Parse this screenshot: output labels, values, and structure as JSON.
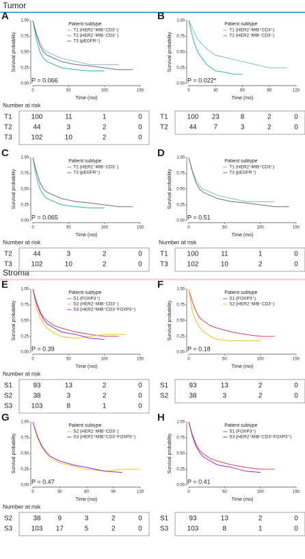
{
  "sections": [
    {
      "title": "Tumor",
      "color": "#1a8fc9"
    },
    {
      "title": "Stroma",
      "color": "#e06666"
    }
  ],
  "chart_data": [
    {
      "type": "line",
      "panel_label": "A",
      "ylabel": "Survival probability",
      "xlabel": "Time (mo)",
      "legend_title": "Patient subtype",
      "annotation": "P = 0.066",
      "annotation_color": "#000000",
      "xlim": [
        0,
        150
      ],
      "xticks": [
        0,
        50,
        100,
        150
      ],
      "ylim": [
        0,
        1
      ],
      "yticks": [
        {
          "value": 0,
          "label": "0.00"
        },
        {
          "value": 0.25,
          "label": "0.25"
        },
        {
          "value": 0.5,
          "label": "0.50"
        },
        {
          "value": 0.75,
          "label": "0.75"
        },
        {
          "value": 1,
          "label": "1.00"
        }
      ],
      "series": [
        {
          "name": "T1 (HER2⁺MIB⁺CD3⁺)",
          "color": "#7fb8e6",
          "x": [
            0,
            5,
            10,
            15,
            20,
            30,
            40,
            60,
            80,
            100,
            120
          ],
          "values": [
            1,
            0.8,
            0.65,
            0.55,
            0.5,
            0.45,
            0.4,
            0.35,
            0.3,
            0.3,
            0.3
          ]
        },
        {
          "name": "T2 (HER2⁻MIB⁻CD3⁻)",
          "color": "#2ab7b0",
          "x": [
            0,
            5,
            10,
            15,
            20,
            30,
            40,
            60,
            80,
            100
          ],
          "values": [
            1,
            0.7,
            0.5,
            0.4,
            0.35,
            0.3,
            0.25,
            0.22,
            0.2,
            0.2
          ]
        },
        {
          "name": "T3 (pEGFR⁺)",
          "color": "#6e6e6e",
          "x": [
            0,
            5,
            10,
            15,
            20,
            30,
            40,
            60,
            80,
            100,
            120,
            140
          ],
          "values": [
            1,
            0.78,
            0.6,
            0.5,
            0.45,
            0.4,
            0.35,
            0.3,
            0.28,
            0.25,
            0.22,
            0.22
          ]
        }
      ],
      "risk_title": "Number at risk",
      "risk_table": [
        {
          "label": "T1",
          "color": "#7fb8e6",
          "values": [
            100,
            11,
            1,
            0
          ]
        },
        {
          "label": "T2",
          "color": "#2ab7b0",
          "values": [
            44,
            3,
            2,
            0
          ]
        },
        {
          "label": "T3",
          "color": "#6e6e6e",
          "values": [
            102,
            10,
            2,
            0
          ]
        }
      ]
    },
    {
      "type": "line",
      "panel_label": "B",
      "ylabel": "Survival probability",
      "xlabel": "Time (mo)",
      "legend_title": "Patient subtype",
      "annotation": "P = 0.022*",
      "annotation_color": "#e53935",
      "xlim": [
        0,
        120
      ],
      "xticks": [
        0,
        30,
        60,
        90,
        120
      ],
      "ylim": [
        0,
        1
      ],
      "yticks": [
        {
          "value": 0,
          "label": "0.00"
        },
        {
          "value": 0.25,
          "label": "0.25"
        },
        {
          "value": 0.5,
          "label": "0.50"
        },
        {
          "value": 0.75,
          "label": "0.75"
        },
        {
          "value": 1,
          "label": "1.00"
        }
      ],
      "series": [
        {
          "name": "T1 (HER2⁺MIB⁺CD3⁺)",
          "color": "#7fb8e6",
          "x": [
            0,
            5,
            10,
            20,
            30,
            45,
            60,
            75,
            90,
            110
          ],
          "values": [
            1,
            0.85,
            0.7,
            0.55,
            0.45,
            0.4,
            0.35,
            0.3,
            0.25,
            0.25
          ]
        },
        {
          "name": "T2 (HER2⁻MIB⁻CD3⁻)",
          "color": "#2ab7b0",
          "x": [
            0,
            5,
            10,
            15,
            20,
            30,
            40,
            50,
            60
          ],
          "values": [
            1,
            0.7,
            0.5,
            0.4,
            0.3,
            0.2,
            0.18,
            0.15,
            0.15
          ]
        }
      ],
      "risk_table": [
        {
          "label": "T1",
          "color": "#7fb8e6",
          "values": [
            100,
            23,
            8,
            2,
            0
          ]
        },
        {
          "label": "T2",
          "color": "#2ab7b0",
          "values": [
            44,
            7,
            3,
            2,
            0
          ]
        }
      ]
    },
    {
      "type": "line",
      "panel_label": "C",
      "ylabel": "Survival probability",
      "xlabel": "Time (mo)",
      "legend_title": "Patient subtype",
      "annotation": "P = 0.065",
      "annotation_color": "#000000",
      "xlim": [
        0,
        150
      ],
      "xticks": [
        0,
        50,
        100,
        150
      ],
      "ylim": [
        0,
        1
      ],
      "yticks": [
        {
          "value": 0,
          "label": "0.00"
        },
        {
          "value": 0.25,
          "label": "0.25"
        },
        {
          "value": 0.5,
          "label": "0.50"
        },
        {
          "value": 0.75,
          "label": "0.75"
        },
        {
          "value": 1,
          "label": "1.00"
        }
      ],
      "series": [
        {
          "name": "T2 (HER2⁻MIB⁻CD3⁻)",
          "color": "#2ab7b0",
          "x": [
            0,
            5,
            10,
            15,
            20,
            30,
            40,
            60,
            80,
            100
          ],
          "values": [
            1,
            0.7,
            0.5,
            0.4,
            0.35,
            0.3,
            0.25,
            0.22,
            0.2,
            0.2
          ]
        },
        {
          "name": "T3 (pEGFR⁺)",
          "color": "#6e6e6e",
          "x": [
            0,
            5,
            10,
            15,
            20,
            30,
            40,
            60,
            80,
            100,
            120,
            140
          ],
          "values": [
            1,
            0.78,
            0.6,
            0.5,
            0.45,
            0.4,
            0.35,
            0.3,
            0.28,
            0.25,
            0.22,
            0.22
          ]
        }
      ],
      "risk_title": "Number at risk",
      "risk_table": [
        {
          "label": "T2",
          "color": "#2ab7b0",
          "values": [
            44,
            3,
            2,
            0
          ]
        },
        {
          "label": "T3",
          "color": "#6e6e6e",
          "values": [
            102,
            10,
            2,
            0
          ]
        }
      ]
    },
    {
      "type": "line",
      "panel_label": "D",
      "ylabel": "Survival probability",
      "xlabel": "Time (mo)",
      "legend_title": "Patient subtype",
      "annotation": "P = 0.51",
      "annotation_color": "#000000",
      "xlim": [
        0,
        150
      ],
      "xticks": [
        0,
        50,
        100,
        150
      ],
      "ylim": [
        0,
        1
      ],
      "yticks": [
        {
          "value": 0,
          "label": "0.00"
        },
        {
          "value": 0.25,
          "label": "0.25"
        },
        {
          "value": 0.5,
          "label": "0.50"
        },
        {
          "value": 0.75,
          "label": "0.75"
        },
        {
          "value": 1,
          "label": "1.00"
        }
      ],
      "series": [
        {
          "name": "T1 (HER2⁺MIB⁺CD3⁺)",
          "color": "#7fb8e6",
          "x": [
            0,
            5,
            10,
            15,
            20,
            30,
            40,
            60,
            80,
            100,
            120
          ],
          "values": [
            1,
            0.8,
            0.65,
            0.55,
            0.5,
            0.45,
            0.4,
            0.35,
            0.3,
            0.3,
            0.3
          ]
        },
        {
          "name": "T3 (pEGFR⁺)",
          "color": "#6e6e6e",
          "x": [
            0,
            5,
            10,
            15,
            20,
            30,
            40,
            60,
            80,
            100,
            120,
            140
          ],
          "values": [
            1,
            0.78,
            0.6,
            0.5,
            0.45,
            0.4,
            0.35,
            0.3,
            0.28,
            0.25,
            0.22,
            0.22
          ]
        }
      ],
      "risk_title": "Number at risk",
      "risk_table": [
        {
          "label": "T1",
          "color": "#7fb8e6",
          "values": [
            100,
            11,
            1,
            0
          ]
        },
        {
          "label": "T3",
          "color": "#6e6e6e",
          "values": [
            102,
            10,
            2,
            0
          ]
        }
      ]
    },
    {
      "type": "line",
      "panel_label": "E",
      "ylabel": "Survival probability",
      "xlabel": "Time (mo)",
      "legend_title": "Patient subtype",
      "annotation": "P = 0.39",
      "annotation_color": "#000000",
      "xlim": [
        0,
        150
      ],
      "xticks": [
        0,
        50,
        100,
        150
      ],
      "ylim": [
        0,
        1
      ],
      "yticks": [
        {
          "value": 0,
          "label": "0.00"
        },
        {
          "value": 0.25,
          "label": "0.25"
        },
        {
          "value": 0.5,
          "label": "0.50"
        },
        {
          "value": 0.75,
          "label": "0.75"
        },
        {
          "value": 1,
          "label": "1.00"
        }
      ],
      "series": [
        {
          "name": "S1 (FOXP3⁺)",
          "color": "#d94452",
          "x": [
            0,
            5,
            10,
            15,
            20,
            30,
            40,
            60,
            80,
            100,
            120
          ],
          "values": [
            1,
            0.8,
            0.65,
            0.55,
            0.5,
            0.42,
            0.38,
            0.32,
            0.28,
            0.25,
            0.25
          ]
        },
        {
          "name": "S2 (HER2⁻MIB⁻CD3⁻)",
          "color": "#f2c21b",
          "x": [
            0,
            5,
            10,
            15,
            20,
            30,
            40,
            60,
            80,
            100,
            130
          ],
          "values": [
            1,
            0.7,
            0.55,
            0.45,
            0.38,
            0.3,
            0.25,
            0.22,
            0.25,
            0.28,
            0.28
          ]
        },
        {
          "name": "S3 (HER2⁺MIB⁺CD3⁺FOXP3⁺)",
          "color": "#8a2be2",
          "x": [
            0,
            5,
            10,
            15,
            20,
            30,
            40,
            60,
            80,
            100
          ],
          "values": [
            1,
            0.78,
            0.62,
            0.52,
            0.45,
            0.38,
            0.32,
            0.28,
            0.22,
            0.2
          ]
        }
      ],
      "risk_title": "Number at risk",
      "risk_table": [
        {
          "label": "S1",
          "color": "#d94452",
          "values": [
            93,
            13,
            2,
            0
          ]
        },
        {
          "label": "S2",
          "color": "#f2c21b",
          "values": [
            38,
            3,
            2,
            0
          ]
        },
        {
          "label": "S3",
          "color": "#8a2be2",
          "values": [
            103,
            8,
            1,
            0
          ]
        }
      ]
    },
    {
      "type": "line",
      "panel_label": "F",
      "ylabel": "Survival probability",
      "xlabel": "Time (mo)",
      "legend_title": "Patient subtype",
      "annotation": "P = 0.18",
      "annotation_color": "#000000",
      "xlim": [
        0,
        150
      ],
      "xticks": [
        0,
        50,
        100,
        150
      ],
      "ylim": [
        0,
        1
      ],
      "yticks": [
        {
          "value": 0,
          "label": "0.00"
        },
        {
          "value": 0.25,
          "label": "0.25"
        },
        {
          "value": 0.5,
          "label": "0.50"
        },
        {
          "value": 0.75,
          "label": "0.75"
        },
        {
          "value": 1,
          "label": "1.00"
        }
      ],
      "series": [
        {
          "name": "S1 (FOXP3⁺)",
          "color": "#d94452",
          "x": [
            0,
            5,
            10,
            15,
            20,
            30,
            40,
            60,
            80,
            100,
            120
          ],
          "values": [
            1,
            0.8,
            0.65,
            0.55,
            0.5,
            0.42,
            0.38,
            0.32,
            0.28,
            0.25,
            0.25
          ]
        },
        {
          "name": "S2 (HER2⁻MIB⁻CD3⁻)",
          "color": "#f2c21b",
          "x": [
            0,
            5,
            10,
            15,
            20,
            30,
            40,
            60,
            80,
            100
          ],
          "values": [
            1,
            0.65,
            0.5,
            0.4,
            0.33,
            0.25,
            0.2,
            0.18,
            0.18,
            0.18
          ]
        }
      ],
      "risk_table": [
        {
          "label": "S1",
          "color": "#d94452",
          "values": [
            93,
            13,
            2,
            0
          ]
        },
        {
          "label": "S2",
          "color": "#f2c21b",
          "values": [
            38,
            3,
            2,
            0
          ]
        }
      ]
    },
    {
      "type": "line",
      "panel_label": "G",
      "ylabel": "Survival probability",
      "xlabel": "Time (mo)",
      "legend_title": "Patient subtype",
      "annotation": "P = 0.47",
      "annotation_color": "#000000",
      "xlim": [
        0,
        120
      ],
      "xticks": [
        0,
        30,
        60,
        90,
        120
      ],
      "ylim": [
        0,
        1
      ],
      "yticks": [
        {
          "value": 0,
          "label": "0.00"
        },
        {
          "value": 0.25,
          "label": "0.25"
        },
        {
          "value": 0.5,
          "label": "0.50"
        },
        {
          "value": 0.75,
          "label": "0.75"
        },
        {
          "value": 1,
          "label": "1.00"
        }
      ],
      "series": [
        {
          "name": "S2 (HER2⁻MIB⁻CD3⁻)",
          "color": "#f2c21b",
          "x": [
            0,
            5,
            10,
            15,
            20,
            30,
            45,
            60,
            80,
            100,
            120
          ],
          "values": [
            1,
            0.75,
            0.6,
            0.5,
            0.42,
            0.35,
            0.3,
            0.25,
            0.22,
            0.25,
            0.25
          ]
        },
        {
          "name": "S3 (HER2⁺MIB⁺CD3⁺FOXP3⁺)",
          "color": "#8a2be2",
          "x": [
            0,
            5,
            10,
            15,
            20,
            30,
            45,
            60,
            80,
            100
          ],
          "values": [
            1,
            0.78,
            0.62,
            0.52,
            0.45,
            0.38,
            0.32,
            0.28,
            0.22,
            0.2
          ]
        }
      ],
      "risk_title": "Number at risk",
      "risk_table": [
        {
          "label": "S2",
          "color": "#f2c21b",
          "values": [
            38,
            9,
            3,
            2,
            0
          ]
        },
        {
          "label": "S3",
          "color": "#8a2be2",
          "values": [
            103,
            17,
            5,
            2,
            0
          ]
        }
      ]
    },
    {
      "type": "line",
      "panel_label": "H",
      "ylabel": "Survival probability",
      "xlabel": "Time (mo)",
      "legend_title": "Patient subtype",
      "annotation": "P = 0.41",
      "annotation_color": "#000000",
      "xlim": [
        0,
        150
      ],
      "xticks": [
        0,
        50,
        100,
        150
      ],
      "ylim": [
        0,
        1
      ],
      "yticks": [
        {
          "value": 0,
          "label": "0.00"
        },
        {
          "value": 0.25,
          "label": "0.25"
        },
        {
          "value": 0.5,
          "label": "0.50"
        },
        {
          "value": 0.75,
          "label": "0.75"
        },
        {
          "value": 1,
          "label": "1.00"
        }
      ],
      "series": [
        {
          "name": "S1 (FOXP3⁺)",
          "color": "#d94452",
          "x": [
            0,
            5,
            10,
            15,
            20,
            30,
            40,
            60,
            80,
            100,
            120
          ],
          "values": [
            1,
            0.8,
            0.65,
            0.55,
            0.5,
            0.42,
            0.38,
            0.32,
            0.28,
            0.25,
            0.25
          ]
        },
        {
          "name": "S3 (HER2⁺MIB⁺CD3⁺FOXP3⁺)",
          "color": "#8a2be2",
          "x": [
            0,
            5,
            10,
            15,
            20,
            30,
            40,
            60,
            80,
            100
          ],
          "values": [
            1,
            0.78,
            0.62,
            0.52,
            0.45,
            0.38,
            0.32,
            0.28,
            0.22,
            0.2
          ]
        }
      ],
      "risk_table": [
        {
          "label": "S1",
          "color": "#d94452",
          "values": [
            93,
            13,
            2,
            0
          ]
        },
        {
          "label": "S3",
          "color": "#8a2be2",
          "values": [
            103,
            8,
            1,
            0
          ]
        }
      ]
    }
  ]
}
